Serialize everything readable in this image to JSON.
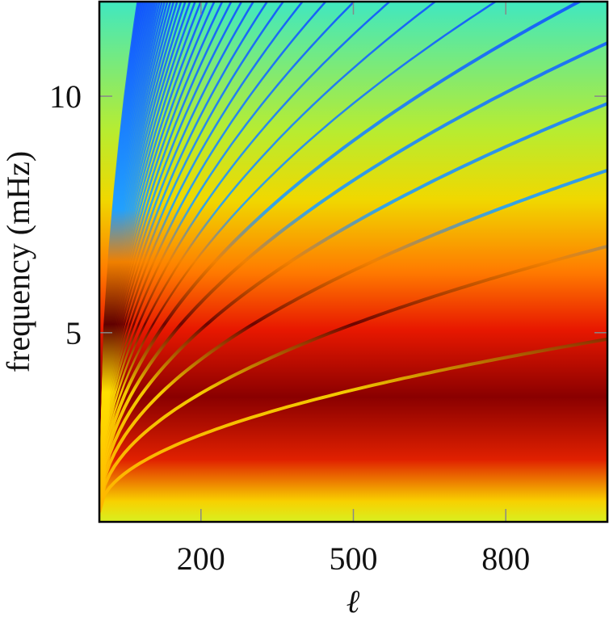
{
  "chart_data": {
    "type": "heatmap",
    "xlabel": "ℓ",
    "ylabel": "frequency (mHz)",
    "xlim": [
      0,
      1000
    ],
    "ylim": [
      1,
      12
    ],
    "xticks": [
      200,
      500,
      800
    ],
    "yticks": [
      5,
      10
    ]
  }
}
